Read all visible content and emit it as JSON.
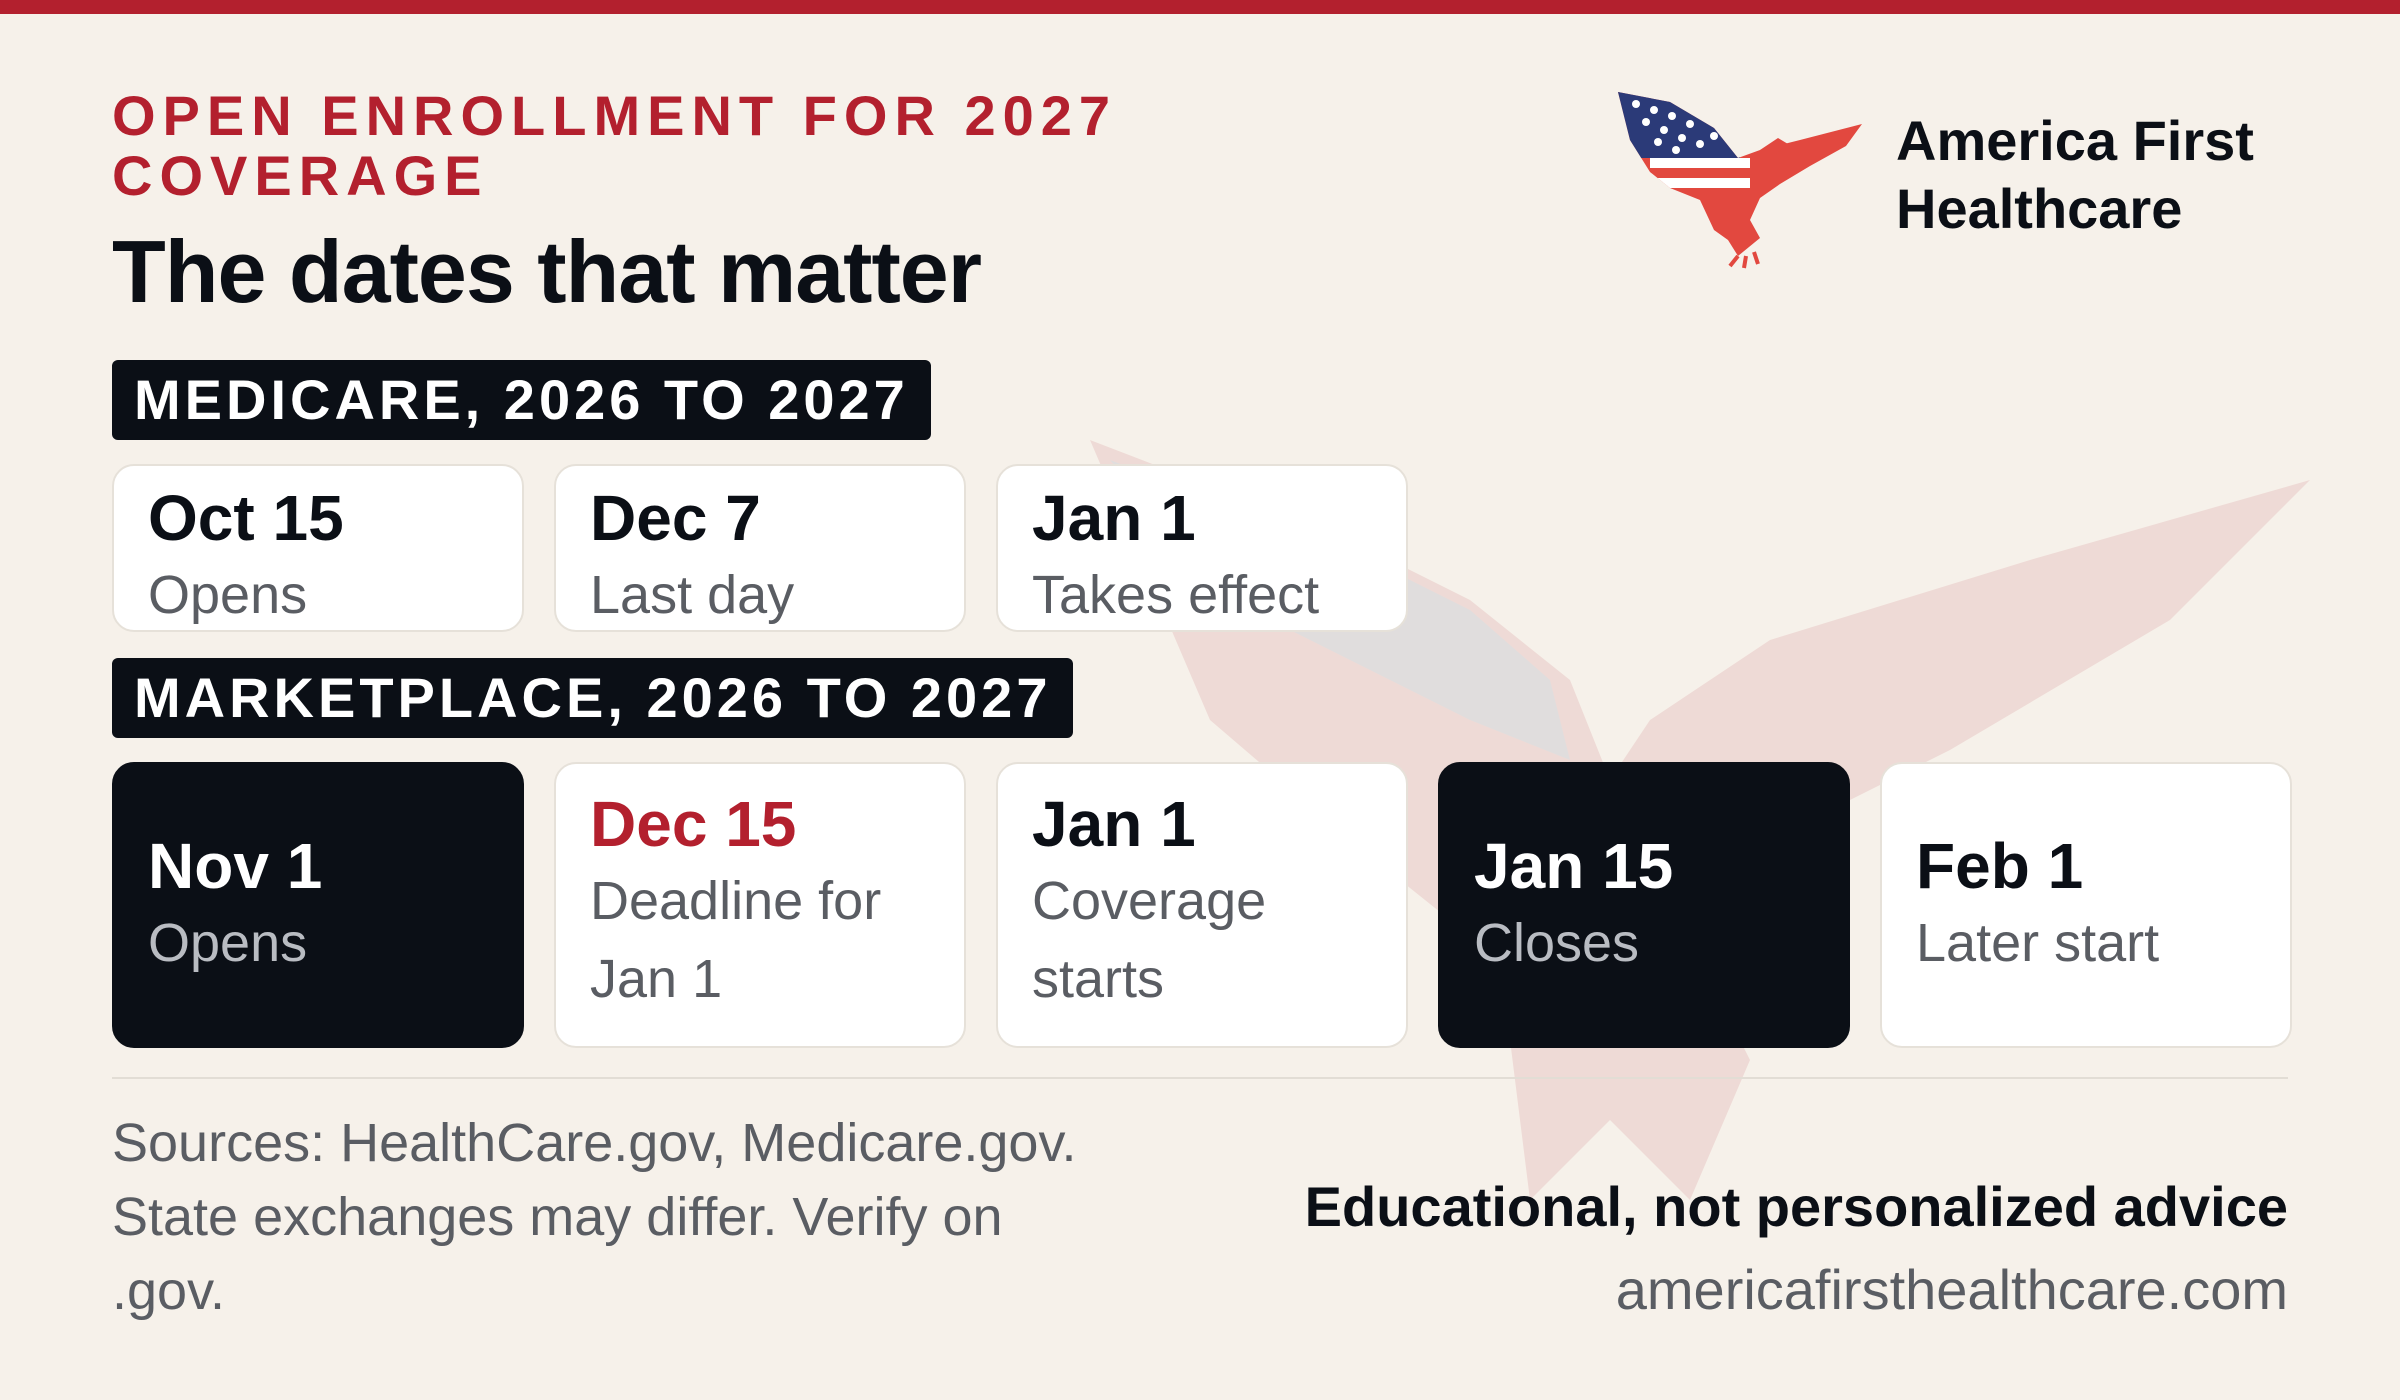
{
  "header": {
    "eyebrow": "OPEN ENROLLMENT FOR 2027 COVERAGE",
    "title": "The dates that matter"
  },
  "brand": {
    "name_line1": "America First",
    "name_line2": "Healthcare",
    "logo_icon": "eagle-flag-logo"
  },
  "medicare": {
    "label": "MEDICARE, 2026 TO 2027",
    "cards": [
      {
        "date": "Oct 15",
        "desc": "Opens"
      },
      {
        "date": "Dec 7",
        "desc": "Last day"
      },
      {
        "date": "Jan 1",
        "desc": "Takes effect"
      }
    ]
  },
  "marketplace": {
    "label": "MARKETPLACE, 2026 TO 2027",
    "cards": [
      {
        "date": "Nov 1",
        "desc": "Opens"
      },
      {
        "date": "Dec 15",
        "desc_line1": "Deadline for",
        "desc_line2": "Jan 1"
      },
      {
        "date": "Jan 1",
        "desc_line1": "Coverage",
        "desc_line2": "starts"
      },
      {
        "date": "Jan 15",
        "desc": "Closes"
      },
      {
        "date": "Feb 1",
        "desc": "Later start"
      }
    ]
  },
  "footer": {
    "sources_line1": "Sources: HealthCare.gov, Medicare.gov.",
    "sources_line2": "State exchanges may differ. Verify on",
    "sources_line3": ".gov.",
    "disclaimer": "Educational, not personalized advice",
    "url": "americafirsthealthcare.com"
  },
  "colors": {
    "accent": "#b3202e",
    "dark": "#0b0f16",
    "background": "#f6f1ea",
    "eagle": "#e2483f",
    "flag_blue": "#2b3a78"
  }
}
